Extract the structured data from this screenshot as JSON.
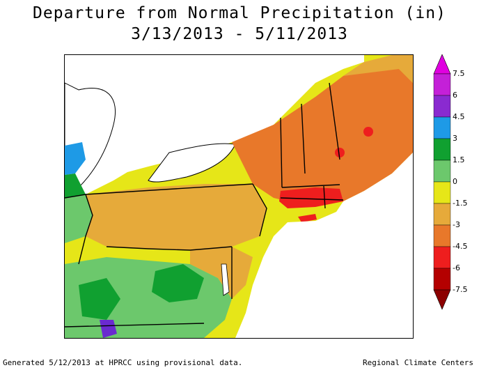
{
  "title": {
    "line1": "Departure from Normal Precipitation (in)",
    "line2": "3/13/2013 - 5/11/2013"
  },
  "legend": {
    "ticks": [
      {
        "label": "7.5",
        "value": 7.5,
        "color": "#e000e0"
      },
      {
        "label": "6",
        "value": 6,
        "color": "#9a20c8"
      },
      {
        "label": "4.5",
        "value": 4.5,
        "color": "#6a2ad0"
      },
      {
        "label": "3",
        "value": 3,
        "color": "#1e9ae6"
      },
      {
        "label": "1.5",
        "value": 1.5,
        "color": "#10a030"
      },
      {
        "label": "0",
        "value": 0,
        "color": "#6cc86c"
      },
      {
        "label": "-1.5",
        "value": -1.5,
        "color": "#e6e618"
      },
      {
        "label": "-3",
        "value": -3,
        "color": "#e6aa3a"
      },
      {
        "label": "-4.5",
        "value": -4.5,
        "color": "#e8782a"
      },
      {
        "label": "-6",
        "value": -6,
        "color": "#ee1e1e"
      },
      {
        "label": "-7.5",
        "value": -7.5,
        "color": "#b40000"
      }
    ],
    "top_cap_color": "#e000e0",
    "bottom_cap_color": "#8c0000"
  },
  "colors": {
    "water": "#ffffff",
    "very_dry": "#b40000",
    "dry_red": "#ee1e1e",
    "dry_orange": "#e8782a",
    "dry_lt_orange": "#e6aa3a",
    "slightly_dry": "#e6e618",
    "normal_green": "#6cc86c",
    "wet_green": "#10a030",
    "wet_blue": "#1e9ae6",
    "wet_purple": "#6a2ad0"
  },
  "footer": {
    "left": "Generated 5/12/2013 at HPRCC using provisional data.",
    "right": "Regional Climate Centers"
  }
}
